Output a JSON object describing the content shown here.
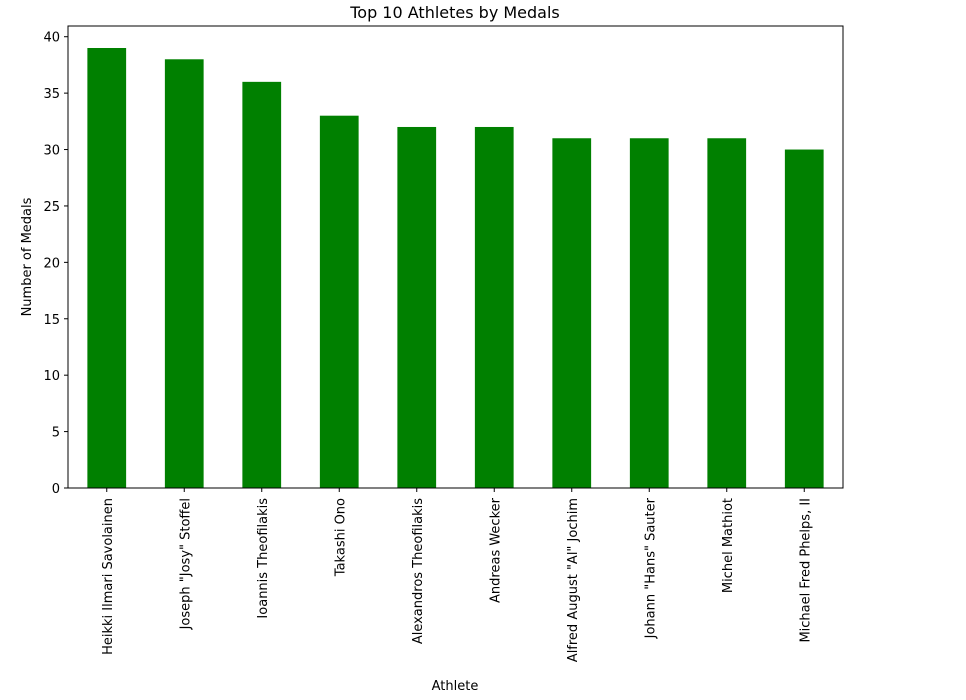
{
  "chart_data": {
    "type": "bar",
    "title": "Top 10 Athletes by Medals",
    "x_label": "Athlete",
    "y_label": "Number of Medals",
    "categories": [
      "Heikki Ilmari Savolainen",
      "Joseph \"Josy\" Stoffel",
      "Ioannis Theofilakis",
      "Takashi Ono",
      "Alexandros Theofilakis",
      "Andreas Wecker",
      "Alfred August \"Al\" Jochim",
      "Johann \"Hans\" Sauter",
      "Michel Mathiot",
      "Michael Fred Phelps, II"
    ],
    "values": [
      39,
      38,
      36,
      33,
      32,
      32,
      31,
      31,
      31,
      30
    ],
    "color": "#008000",
    "ylim": [
      0,
      40.95
    ],
    "yticks": [
      0,
      5,
      10,
      15,
      20,
      25,
      30,
      35,
      40
    ],
    "grid": false
  }
}
